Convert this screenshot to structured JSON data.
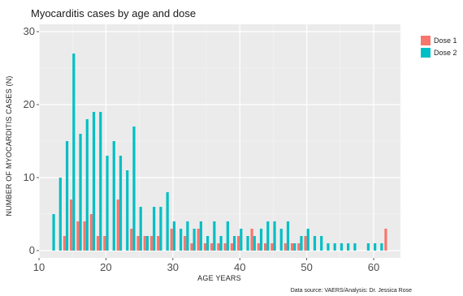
{
  "chart_data": {
    "type": "bar",
    "title": "Myocarditis cases by age and dose",
    "xlabel": "AGE YEARS",
    "ylabel": "NUMBER OF MYOCARDITIS CASES (N)",
    "xlim": [
      10,
      64
    ],
    "ylim": [
      -1,
      31
    ],
    "xticks": [
      "10",
      "20",
      "30",
      "40",
      "50",
      "60"
    ],
    "yticks": [
      "0",
      "10",
      "20",
      "30"
    ],
    "grid": true,
    "legend_position": "right",
    "source_note": "Data source: VAERS/Analysis: Dr. Jessica Rose",
    "series": [
      {
        "name": "Dose 1",
        "color": "#f8766d",
        "points": [
          [
            14,
            2
          ],
          [
            15,
            7
          ],
          [
            16,
            4
          ],
          [
            17,
            4
          ],
          [
            18,
            5
          ],
          [
            19,
            2
          ],
          [
            20,
            2
          ],
          [
            22,
            7
          ],
          [
            24,
            3
          ],
          [
            25,
            2
          ],
          [
            26,
            2
          ],
          [
            27,
            2
          ],
          [
            28,
            2
          ],
          [
            30,
            3
          ],
          [
            32,
            2
          ],
          [
            33,
            1
          ],
          [
            34,
            3
          ],
          [
            35,
            1
          ],
          [
            36,
            1
          ],
          [
            37,
            1
          ],
          [
            38,
            1
          ],
          [
            39,
            1
          ],
          [
            40,
            2
          ],
          [
            42,
            3
          ],
          [
            43,
            1
          ],
          [
            44,
            1
          ],
          [
            45,
            1
          ],
          [
            47,
            1
          ],
          [
            48,
            1
          ],
          [
            49,
            1
          ],
          [
            50,
            2
          ],
          [
            62,
            3
          ]
        ]
      },
      {
        "name": "Dose 2",
        "color": "#00bfc4",
        "points": [
          [
            12,
            5
          ],
          [
            13,
            10
          ],
          [
            14,
            15
          ],
          [
            15,
            27
          ],
          [
            16,
            16
          ],
          [
            17,
            18
          ],
          [
            18,
            19
          ],
          [
            19,
            19
          ],
          [
            20,
            13
          ],
          [
            21,
            15
          ],
          [
            22,
            13
          ],
          [
            23,
            11
          ],
          [
            24,
            17
          ],
          [
            25,
            6
          ],
          [
            26,
            2
          ],
          [
            27,
            6
          ],
          [
            28,
            6
          ],
          [
            29,
            8
          ],
          [
            30,
            4
          ],
          [
            31,
            3
          ],
          [
            32,
            4
          ],
          [
            33,
            3
          ],
          [
            34,
            4
          ],
          [
            35,
            2
          ],
          [
            36,
            4
          ],
          [
            37,
            2
          ],
          [
            38,
            4
          ],
          [
            39,
            2
          ],
          [
            40,
            3
          ],
          [
            41,
            2
          ],
          [
            42,
            2
          ],
          [
            43,
            3
          ],
          [
            44,
            4
          ],
          [
            45,
            4
          ],
          [
            46,
            3
          ],
          [
            47,
            4
          ],
          [
            48,
            1
          ],
          [
            49,
            2
          ],
          [
            50,
            3
          ],
          [
            51,
            2
          ],
          [
            52,
            2
          ],
          [
            53,
            1
          ],
          [
            54,
            1
          ],
          [
            55,
            1
          ],
          [
            56,
            1
          ],
          [
            57,
            1
          ],
          [
            59,
            1
          ],
          [
            60,
            1
          ],
          [
            61,
            1
          ]
        ]
      }
    ]
  }
}
